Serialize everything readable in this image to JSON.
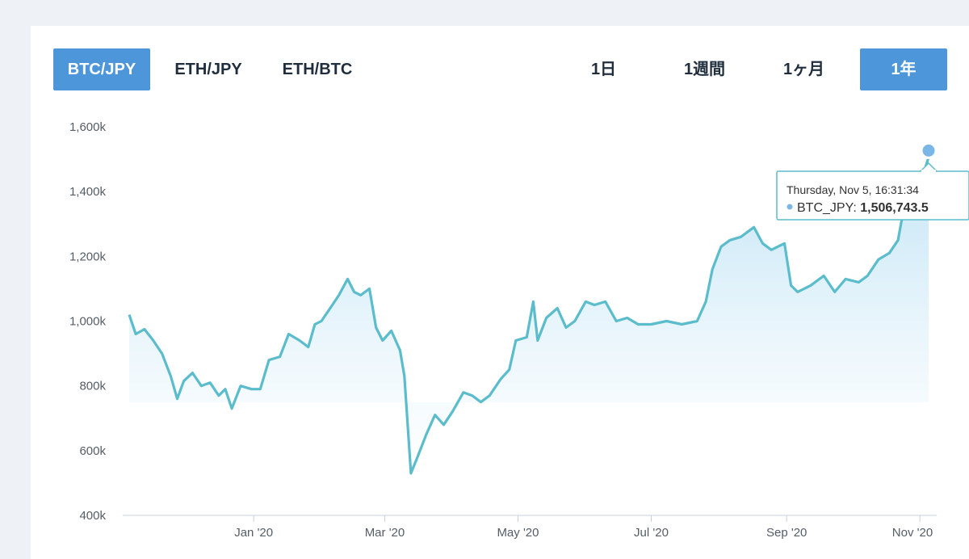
{
  "pair_tabs": [
    {
      "label": "BTC/JPY",
      "active": true
    },
    {
      "label": "ETH/JPY",
      "active": false
    },
    {
      "label": "ETH/BTC",
      "active": false
    }
  ],
  "period_tabs": [
    {
      "label": "1日",
      "active": false
    },
    {
      "label": "1週間",
      "active": false
    },
    {
      "label": "1ヶ月",
      "active": false
    },
    {
      "label": "1年",
      "active": true
    }
  ],
  "colors": {
    "accent": "#4d96d9",
    "line": "#5bbccc",
    "area_top": "#bfe3f5"
  },
  "tooltip": {
    "date": "Thursday, Nov 5, 16:31:34",
    "series": "BTC_JPY",
    "value": "1,506,743.5"
  },
  "chart_data": {
    "type": "area",
    "series_name": "BTC_JPY",
    "x_axis": {
      "type": "date",
      "range": [
        "2019-11-05",
        "2020-11-05"
      ],
      "tick_labels": [
        "Jan '20",
        "Mar '20",
        "May '20",
        "Jul '20",
        "Sep '20",
        "Nov '20"
      ],
      "tick_dates": [
        "2020-01-01",
        "2020-03-01",
        "2020-05-01",
        "2020-07-01",
        "2020-09-01",
        "2020-11-01"
      ]
    },
    "y_axis": {
      "min": 400000,
      "max": 1600000,
      "ticks": [
        400000,
        600000,
        800000,
        1000000,
        1200000,
        1400000,
        1600000
      ],
      "tick_labels": [
        "400k",
        "600k",
        "800k",
        "1,000k",
        "1,200k",
        "1,400k",
        "1,600k"
      ]
    },
    "grid": false,
    "points": [
      [
        "2019-11-05",
        1020000
      ],
      [
        "2019-11-08",
        960000
      ],
      [
        "2019-11-12",
        975000
      ],
      [
        "2019-11-16",
        940000
      ],
      [
        "2019-11-20",
        900000
      ],
      [
        "2019-11-24",
        830000
      ],
      [
        "2019-11-27",
        760000
      ],
      [
        "2019-11-30",
        815000
      ],
      [
        "2019-12-04",
        840000
      ],
      [
        "2019-12-08",
        800000
      ],
      [
        "2019-12-12",
        810000
      ],
      [
        "2019-12-16",
        770000
      ],
      [
        "2019-12-19",
        790000
      ],
      [
        "2019-12-22",
        730000
      ],
      [
        "2019-12-26",
        800000
      ],
      [
        "2019-12-31",
        790000
      ],
      [
        "2020-01-04",
        790000
      ],
      [
        "2020-01-08",
        880000
      ],
      [
        "2020-01-13",
        890000
      ],
      [
        "2020-01-17",
        960000
      ],
      [
        "2020-01-22",
        940000
      ],
      [
        "2020-01-26",
        920000
      ],
      [
        "2020-01-29",
        990000
      ],
      [
        "2020-02-01",
        1000000
      ],
      [
        "2020-02-05",
        1040000
      ],
      [
        "2020-02-09",
        1080000
      ],
      [
        "2020-02-13",
        1130000
      ],
      [
        "2020-02-16",
        1090000
      ],
      [
        "2020-02-19",
        1080000
      ],
      [
        "2020-02-23",
        1100000
      ],
      [
        "2020-02-26",
        980000
      ],
      [
        "2020-02-29",
        940000
      ],
      [
        "2020-03-04",
        970000
      ],
      [
        "2020-03-08",
        910000
      ],
      [
        "2020-03-10",
        830000
      ],
      [
        "2020-03-13",
        530000
      ],
      [
        "2020-03-16",
        580000
      ],
      [
        "2020-03-20",
        650000
      ],
      [
        "2020-03-24",
        710000
      ],
      [
        "2020-03-28",
        680000
      ],
      [
        "2020-04-01",
        720000
      ],
      [
        "2020-04-06",
        780000
      ],
      [
        "2020-04-10",
        770000
      ],
      [
        "2020-04-14",
        750000
      ],
      [
        "2020-04-18",
        770000
      ],
      [
        "2020-04-23",
        820000
      ],
      [
        "2020-04-27",
        850000
      ],
      [
        "2020-04-30",
        940000
      ],
      [
        "2020-05-05",
        950000
      ],
      [
        "2020-05-08",
        1060000
      ],
      [
        "2020-05-10",
        940000
      ],
      [
        "2020-05-14",
        1010000
      ],
      [
        "2020-05-19",
        1040000
      ],
      [
        "2020-05-23",
        980000
      ],
      [
        "2020-05-27",
        1000000
      ],
      [
        "2020-06-01",
        1060000
      ],
      [
        "2020-06-05",
        1050000
      ],
      [
        "2020-06-10",
        1060000
      ],
      [
        "2020-06-15",
        1000000
      ],
      [
        "2020-06-20",
        1010000
      ],
      [
        "2020-06-25",
        990000
      ],
      [
        "2020-07-01",
        990000
      ],
      [
        "2020-07-08",
        1000000
      ],
      [
        "2020-07-15",
        990000
      ],
      [
        "2020-07-22",
        1000000
      ],
      [
        "2020-07-26",
        1060000
      ],
      [
        "2020-07-29",
        1160000
      ],
      [
        "2020-08-02",
        1230000
      ],
      [
        "2020-08-06",
        1250000
      ],
      [
        "2020-08-11",
        1260000
      ],
      [
        "2020-08-17",
        1290000
      ],
      [
        "2020-08-21",
        1240000
      ],
      [
        "2020-08-25",
        1220000
      ],
      [
        "2020-08-31",
        1240000
      ],
      [
        "2020-09-03",
        1110000
      ],
      [
        "2020-09-06",
        1090000
      ],
      [
        "2020-09-12",
        1110000
      ],
      [
        "2020-09-18",
        1140000
      ],
      [
        "2020-09-23",
        1090000
      ],
      [
        "2020-09-28",
        1130000
      ],
      [
        "2020-10-04",
        1120000
      ],
      [
        "2020-10-08",
        1140000
      ],
      [
        "2020-10-13",
        1190000
      ],
      [
        "2020-10-18",
        1210000
      ],
      [
        "2020-10-22",
        1250000
      ],
      [
        "2020-10-26",
        1400000
      ],
      [
        "2020-10-30",
        1430000
      ],
      [
        "2020-11-02",
        1440000
      ],
      [
        "2020-11-05",
        1506743.5
      ]
    ]
  }
}
